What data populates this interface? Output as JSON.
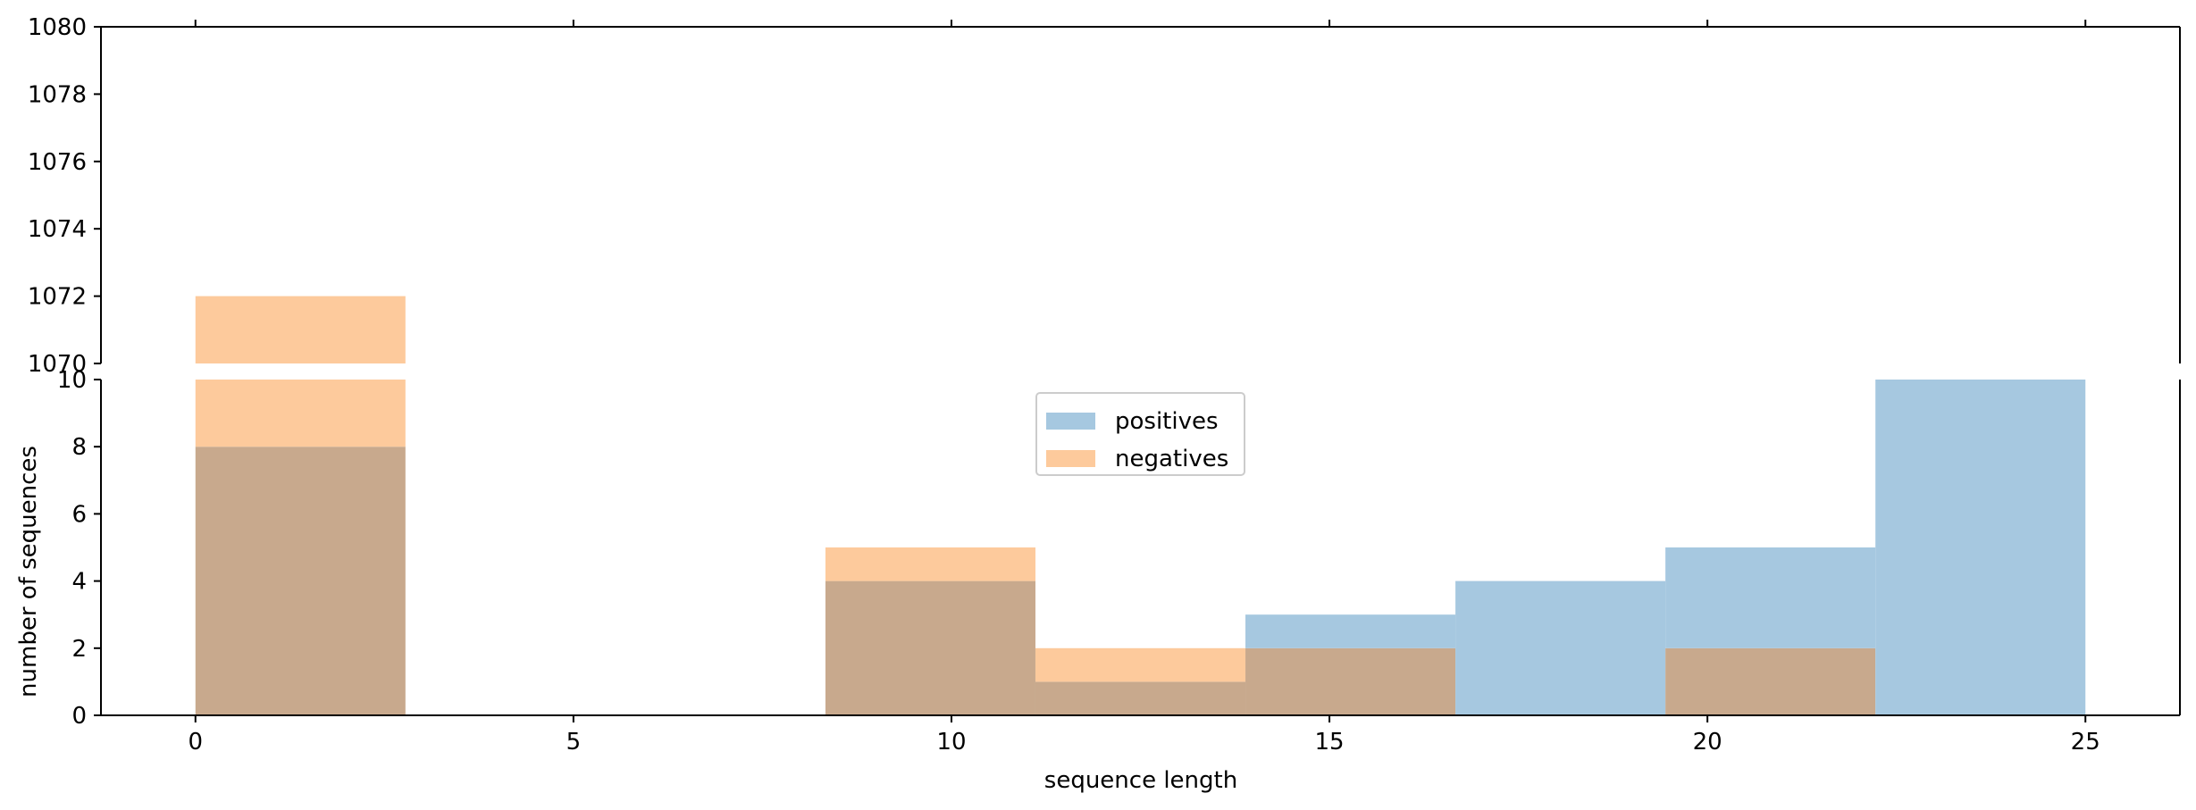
{
  "chart_data": {
    "type": "bar",
    "subtype": "overlapping histogram with broken y-axis",
    "xlabel": "sequence length",
    "ylabel": "number of sequences",
    "xlim": [
      -1.25,
      26.25
    ],
    "x_ticks": [
      0,
      5,
      10,
      15,
      20,
      25
    ],
    "y_break": {
      "upper_ylim": [
        1070,
        1080
      ],
      "upper_ticks": [
        1070,
        1072,
        1074,
        1076,
        1078,
        1080
      ],
      "lower_ylim": [
        0,
        10
      ],
      "lower_ticks": [
        0,
        2,
        4,
        6,
        8,
        10
      ]
    },
    "bin_edges": [
      0,
      2.7778,
      5.5556,
      8.3333,
      11.1111,
      13.8889,
      16.6667,
      19.4444,
      22.2222,
      25
    ],
    "series": [
      {
        "name": "positives",
        "color": "#a6c8e0",
        "values": [
          8,
          0,
          0,
          4,
          1,
          3,
          4,
          5,
          10
        ]
      },
      {
        "name": "negatives",
        "color": "#fdca9c",
        "values": [
          1072,
          0,
          0,
          5,
          2,
          2,
          0,
          2,
          0
        ]
      }
    ],
    "overlap_color": "#c8a98d",
    "legend": {
      "position": "upper center"
    }
  }
}
